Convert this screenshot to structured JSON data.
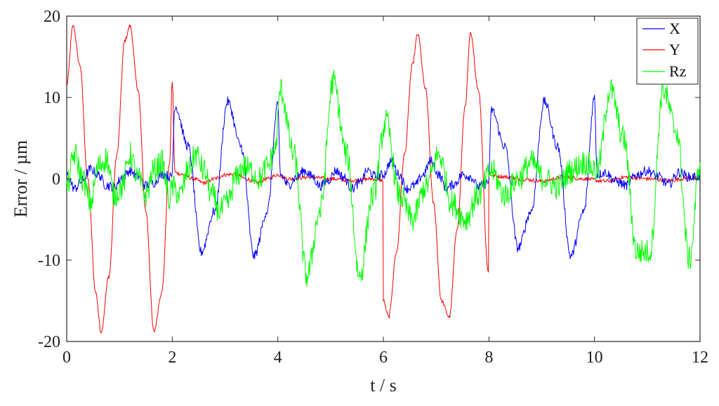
{
  "chart_data": {
    "type": "line",
    "xlabel": "t / s",
    "ylabel": "Error / µm",
    "xlim": [
      0,
      12
    ],
    "ylim": [
      -20,
      20
    ],
    "xticks": [
      0,
      2,
      4,
      6,
      8,
      10,
      12
    ],
    "yticks": [
      -20,
      -10,
      0,
      10,
      20
    ],
    "xtick_labels": [
      "0",
      "2",
      "4",
      "6",
      "8",
      "10",
      "12"
    ],
    "ytick_labels": [
      "-20",
      "-10",
      "0",
      "10",
      "20"
    ],
    "grid": false,
    "legend_position": "top-right",
    "series": [
      {
        "name": "X",
        "color": "#0000ff",
        "x": [
          0,
          0.15,
          0.3,
          0.45,
          0.6,
          0.75,
          0.9,
          1.05,
          1.2,
          1.35,
          1.5,
          1.65,
          1.8,
          1.99,
          2.05,
          2.3,
          2.55,
          2.8,
          3.05,
          3.3,
          3.55,
          3.8,
          4.0,
          4.05,
          4.2,
          4.35,
          4.5,
          4.65,
          4.8,
          4.95,
          5.1,
          5.25,
          5.4,
          5.55,
          5.7,
          5.85,
          6.0,
          6.15,
          6.3,
          6.45,
          6.6,
          6.75,
          6.9,
          7.05,
          7.2,
          7.35,
          7.5,
          7.65,
          7.8,
          7.99,
          8.05,
          8.3,
          8.55,
          8.8,
          9.05,
          9.3,
          9.55,
          9.8,
          10.0,
          10.05,
          10.2,
          10.4,
          10.6,
          10.8,
          11.0,
          11.2,
          11.4,
          11.6,
          11.8,
          12.0
        ],
        "y": [
          0.5,
          -1.2,
          -0.2,
          1.2,
          0.5,
          -0.8,
          -1.0,
          0.2,
          1.0,
          0.3,
          -0.8,
          -0.5,
          0.6,
          0.2,
          9.0,
          4.0,
          -9.0,
          -4.0,
          9.5,
          4.0,
          -9.5,
          -4.0,
          9.0,
          0.5,
          -0.8,
          0.2,
          1.0,
          0.3,
          -0.9,
          -0.2,
          1.0,
          0.2,
          -1.2,
          -0.5,
          1.0,
          0.3,
          0.5,
          2.2,
          0.5,
          -1.2,
          -0.8,
          0.5,
          2.2,
          0.5,
          -1.2,
          -0.6,
          0.5,
          0.3,
          -1.0,
          -0.5,
          8.5,
          4.0,
          -8.5,
          -4.0,
          9.5,
          4.0,
          -9.5,
          -4.0,
          10.0,
          0.5,
          0.8,
          -0.3,
          -0.8,
          0.5,
          1.0,
          0.3,
          -0.7,
          0.8,
          0.2,
          0.3
        ]
      },
      {
        "name": "Y",
        "color": "#ff0000",
        "x": [
          0,
          0.12,
          0.25,
          0.4,
          0.55,
          0.65,
          0.8,
          0.95,
          1.1,
          1.2,
          1.35,
          1.5,
          1.65,
          1.8,
          1.95,
          2.0,
          2.05,
          2.2,
          2.4,
          2.6,
          2.8,
          3.0,
          3.2,
          3.4,
          3.6,
          3.8,
          4.0,
          4.2,
          4.6,
          5.0,
          5.4,
          5.8,
          5.99,
          6.0,
          6.1,
          6.25,
          6.4,
          6.55,
          6.65,
          6.8,
          6.95,
          7.1,
          7.25,
          7.4,
          7.55,
          7.65,
          7.8,
          7.99,
          8.0,
          8.2,
          8.6,
          9.0,
          9.4,
          9.8,
          10.2,
          10.6,
          11.0,
          11.4,
          11.8,
          12.0
        ],
        "y": [
          11.5,
          18.8,
          14.0,
          0.0,
          -14.0,
          -18.8,
          -12.0,
          3.0,
          17.0,
          18.8,
          11.0,
          -4.0,
          -18.8,
          -14.0,
          2.0,
          12.0,
          0.8,
          0.5,
          0.0,
          -0.5,
          0.0,
          0.5,
          0.6,
          0.0,
          -0.5,
          0.0,
          0.5,
          0.0,
          0.2,
          0.0,
          -0.2,
          0.0,
          -0.2,
          -15.0,
          -17.0,
          -9.0,
          3.0,
          14.0,
          17.8,
          11.0,
          -3.0,
          -15.0,
          -17.0,
          -6.0,
          9.0,
          17.8,
          11.0,
          -11.5,
          0.5,
          0.3,
          0.0,
          -0.3,
          0.2,
          0.0,
          -0.3,
          0.2,
          0.0,
          -0.2,
          0.1,
          0.0
        ]
      },
      {
        "name": "Rz",
        "color": "#00ff00",
        "x": [
          0,
          0.15,
          0.3,
          0.45,
          0.6,
          0.75,
          0.9,
          1.05,
          1.2,
          1.35,
          1.5,
          1.65,
          1.8,
          1.95,
          2.0,
          2.15,
          2.3,
          2.45,
          2.6,
          2.75,
          2.9,
          3.05,
          3.2,
          3.35,
          3.5,
          3.65,
          3.8,
          3.95,
          4.05,
          4.3,
          4.55,
          4.8,
          5.05,
          5.3,
          5.55,
          5.8,
          6.05,
          6.3,
          6.55,
          6.8,
          7.05,
          7.3,
          7.55,
          7.8,
          8.05,
          8.3,
          8.55,
          8.8,
          9.05,
          9.3,
          9.55,
          9.8,
          10.05,
          10.3,
          10.55,
          10.8,
          11.05,
          11.3,
          11.55,
          11.8,
          12.0
        ],
        "y": [
          -1.0,
          3.0,
          0.0,
          -3.0,
          1.5,
          2.5,
          -2.0,
          -1.0,
          3.0,
          0.0,
          -2.0,
          1.0,
          2.0,
          -2.5,
          -1.0,
          -2.0,
          1.0,
          3.0,
          1.0,
          -2.0,
          -4.0,
          -3.0,
          0.0,
          1.5,
          1.0,
          0.0,
          1.5,
          3.5,
          11.0,
          3.0,
          -12.0,
          -4.0,
          12.0,
          3.0,
          -12.0,
          -2.0,
          7.0,
          -2.0,
          -5.0,
          -1.0,
          3.0,
          -3.0,
          -5.0,
          -2.0,
          1.0,
          -2.0,
          0.0,
          2.0,
          0.0,
          -1.0,
          1.0,
          2.0,
          1.0,
          11.0,
          5.0,
          -9.0,
          -9.0,
          11.0,
          6.0,
          -10.0,
          2.0
        ]
      }
    ]
  }
}
